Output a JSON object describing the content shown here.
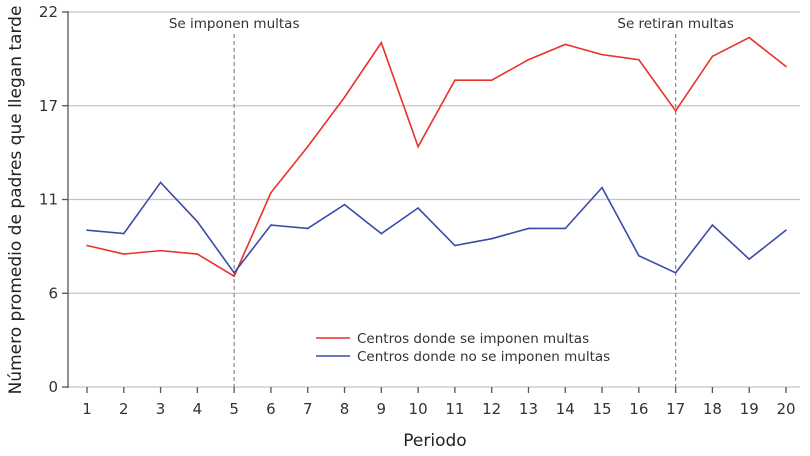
{
  "chart_data": {
    "type": "line",
    "xlabel": "Periodo",
    "ylabel": "Número promedio de padres que llegan tarde",
    "x": [
      1,
      2,
      3,
      4,
      5,
      6,
      7,
      8,
      9,
      10,
      11,
      12,
      13,
      14,
      15,
      16,
      17,
      18,
      19,
      20
    ],
    "ylim": [
      0,
      22
    ],
    "yticks": [
      0,
      5.5,
      11,
      16.5,
      22
    ],
    "ytick_labels": [
      "0",
      "6",
      "11",
      "17",
      "22"
    ],
    "grid": "horizontal",
    "legend_position": "bottom-center",
    "series": [
      {
        "name": "Centros donde se imponen multas",
        "color": "#e8322b",
        "values": [
          8.3,
          7.8,
          8.0,
          7.8,
          6.5,
          11.4,
          14.1,
          17.0,
          20.2,
          14.1,
          18.0,
          18.0,
          19.2,
          20.1,
          19.5,
          19.2,
          16.2,
          19.4,
          20.5,
          18.8
        ]
      },
      {
        "name": "Centros donde no se imponen multas",
        "color": "#3a4aa8",
        "values": [
          9.2,
          9.0,
          12.0,
          9.7,
          6.7,
          9.5,
          9.3,
          10.7,
          9.0,
          10.5,
          8.3,
          8.7,
          9.3,
          9.3,
          11.7,
          7.7,
          6.7,
          9.5,
          7.5,
          9.2
        ]
      }
    ],
    "annotations": [
      {
        "x": 5,
        "text": "Se imponen multas"
      },
      {
        "x": 17,
        "text": "Se retiran multas"
      }
    ]
  }
}
